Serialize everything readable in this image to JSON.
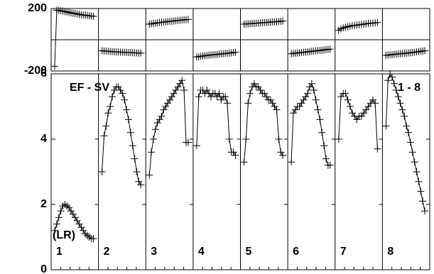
{
  "chart_data": [
    {
      "type": "line",
      "color": "#000000",
      "ylim": [
        -200,
        200
      ],
      "yticks": [
        -200,
        200
      ],
      "series": [
        {
          "values": [
            -170,
            190,
            188,
            185,
            183,
            180,
            178,
            175,
            172,
            170,
            168,
            165,
            163,
            160,
            158,
            157,
            155,
            153,
            152,
            150
          ]
        },
        {
          "values": [
            -70,
            -72,
            -73,
            -74,
            -75,
            -76,
            -77,
            -78,
            -78,
            -79,
            -80,
            -80,
            -81,
            -82,
            -82,
            -83,
            -84,
            -84,
            -85,
            -85
          ]
        },
        {
          "values": [
            100,
            102,
            104,
            106,
            108,
            110,
            112,
            113,
            115,
            116,
            118,
            119,
            120,
            122,
            124,
            125,
            126,
            128,
            129,
            130
          ]
        },
        {
          "values": [
            -110,
            -108,
            -106,
            -104,
            -102,
            -100,
            -99,
            -97,
            -96,
            -95,
            -94,
            -92,
            -91,
            -90,
            -88,
            -87,
            -85,
            -84,
            -82,
            -80
          ]
        },
        {
          "values": [
            100,
            101,
            102,
            103,
            104,
            105,
            106,
            107,
            108,
            109,
            110,
            111,
            112,
            113,
            114,
            115,
            116,
            117,
            118,
            120
          ]
        },
        {
          "values": [
            -90,
            -88,
            -86,
            -85,
            -83,
            -82,
            -80,
            -79,
            -77,
            -76,
            -74,
            -73,
            -71,
            -70,
            -68,
            -67,
            -65,
            -63,
            -62,
            -60
          ]
        },
        {
          "values": [
            60,
            70,
            76,
            80,
            84,
            87,
            90,
            92,
            94,
            96,
            98,
            100,
            102,
            104,
            105,
            107,
            108,
            110
          ]
        },
        {
          "values": [
            -100,
            -98,
            -97,
            -95,
            -94,
            -92,
            -91,
            -90,
            -88,
            -87,
            -86,
            -84,
            -83,
            -82,
            -80,
            -78,
            -76,
            -74,
            -72,
            -70
          ]
        }
      ]
    },
    {
      "type": "line",
      "color": "#000000",
      "ylim": [
        0,
        6
      ],
      "yticks": [
        0,
        2,
        4,
        6
      ],
      "annotations": [
        "EF - SV",
        "1 - 8",
        "(LR)"
      ],
      "series": [
        {
          "name": "1",
          "values": [
            1.2,
            1.4,
            1.6,
            1.8,
            1.95,
            2.0,
            1.95,
            1.9,
            1.8,
            1.7,
            1.6,
            1.5,
            1.4,
            1.3,
            1.2,
            1.1,
            1.05,
            1.0,
            0.95,
            0.95
          ]
        },
        {
          "name": "2",
          "values": [
            3.0,
            4.1,
            4.4,
            4.8,
            5.0,
            5.3,
            5.5,
            5.6,
            5.6,
            5.5,
            5.4,
            5.2,
            4.9,
            4.6,
            4.2,
            3.8,
            3.4,
            3.0,
            2.7,
            2.6
          ]
        },
        {
          "name": "3",
          "values": [
            2.9,
            3.6,
            4.0,
            4.3,
            4.5,
            4.6,
            4.7,
            4.9,
            5.0,
            5.1,
            5.2,
            5.3,
            5.4,
            5.5,
            5.6,
            5.7,
            5.8,
            5.5,
            3.9,
            3.9
          ]
        },
        {
          "name": "4",
          "values": [
            3.8,
            5.3,
            5.5,
            5.5,
            5.4,
            5.5,
            5.4,
            5.3,
            5.4,
            5.4,
            5.3,
            5.4,
            5.2,
            5.3,
            5.3,
            5.1,
            4.0,
            3.6,
            3.6,
            3.5
          ]
        },
        {
          "name": "5",
          "values": [
            3.3,
            4.0,
            5.1,
            5.4,
            5.6,
            5.7,
            5.6,
            5.6,
            5.5,
            5.4,
            5.4,
            5.3,
            5.2,
            5.2,
            5.1,
            5.0,
            4.9,
            4.0,
            3.6,
            3.5
          ]
        },
        {
          "name": "6",
          "values": [
            3.3,
            4.8,
            4.9,
            5.0,
            5.0,
            5.1,
            5.2,
            5.3,
            5.4,
            5.6,
            5.7,
            5.5,
            5.2,
            4.9,
            4.6,
            4.2,
            3.8,
            3.4,
            3.2,
            3.2
          ]
        },
        {
          "name": "7",
          "values": [
            4.0,
            5.3,
            5.4,
            5.4,
            5.2,
            5.0,
            4.8,
            4.7,
            4.6,
            4.7,
            4.7,
            4.8,
            4.9,
            5.0,
            5.1,
            5.2,
            5.1,
            3.7
          ]
        },
        {
          "name": "8",
          "values": [
            4.4,
            5.8,
            6.0,
            5.9,
            5.7,
            5.5,
            5.3,
            5.1,
            4.9,
            4.7,
            4.4,
            4.2,
            3.9,
            3.6,
            3.3,
            3.0,
            2.7,
            2.4,
            2.1,
            1.8
          ]
        }
      ]
    }
  ]
}
